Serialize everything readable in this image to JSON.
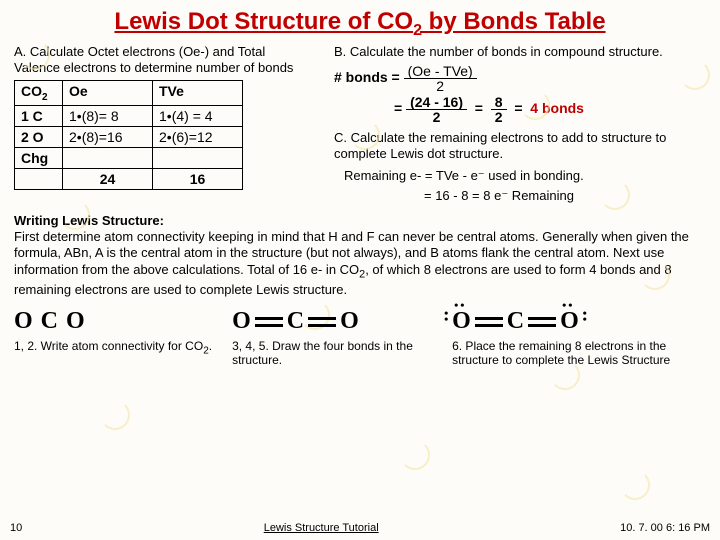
{
  "title_html": "Lewis Dot Structure of CO<sub>2</sub> by Bonds Table",
  "secA": "A. Calculate Octet electrons (Oe-) and Total Valence electrons to determine number of bonds",
  "table": {
    "r1": {
      "c1_html": "CO<sub>2</sub>",
      "c2": "Oe",
      "c3": "TVe"
    },
    "r2": {
      "c1": "1 C",
      "c2": "1•(8)= 8",
      "c3": "1•(4) = 4"
    },
    "r3": {
      "c1": "2 O",
      "c2": "2•(8)=16",
      "c3": "2•(6)=12"
    },
    "r4": {
      "c1": "Chg",
      "c2": "",
      "c3": ""
    },
    "r5": {
      "c1": "",
      "c2": "24",
      "c3": "16"
    }
  },
  "secB": "B. Calculate the number of bonds in compound structure.",
  "bonds_label": "# bonds  =",
  "frac1_top": "(Oe - TVe)",
  "frac1_bot": "2",
  "eq2_pre": "=",
  "frac2_top": "(24 - 16)",
  "frac2_bot": "2",
  "eq2_mid": "=",
  "frac3_top": "8",
  "frac3_bot": "2",
  "eq2_end": "=",
  "result_bonds": "4 bonds",
  "secC": "C.  Calculate the remaining electrons to add to structure to complete Lewis dot structure.",
  "remain_l1": "Remaining e-  = TVe  -  e⁻ used in bonding.",
  "remain_l2": "= 16 - 8  =  8 e⁻ Remaining",
  "writing_title": "Writing Lewis Structure:",
  "writing_body_html": "First determine atom connectivity keeping in mind that H and F can never be central atoms.  Generally when given the formula, ABn, A is the central atom in the structure (but not always), and B atoms flank the central atom.   Next use information from the above calculations.  Total of 16 e- in CO<sub>2</sub>, of which 8 electrons are used to form 4 bonds and 8 remaining electrons are used to complete Lewis structure.",
  "struct1_caption_html": "1, 2. Write atom connectivity for CO<sub>2</sub>.",
  "struct2_caption": "3, 4, 5. Draw the four bonds in the structure.",
  "struct3_caption": "6. Place the remaining 8 electrons in the structure to complete the Lewis Structure",
  "atoms": {
    "o": "O",
    "c": "C"
  },
  "footer": {
    "page": "10",
    "link": "Lewis Structure Tutorial",
    "stamp": "10. 7. 00 6: 16 PM"
  },
  "swirls": [
    {
      "t": 40,
      "l": 20
    },
    {
      "t": 60,
      "l": 680
    },
    {
      "t": 120,
      "l": 350
    },
    {
      "t": 200,
      "l": 60
    },
    {
      "t": 260,
      "l": 640
    },
    {
      "t": 400,
      "l": 100
    },
    {
      "t": 440,
      "l": 400
    },
    {
      "t": 470,
      "l": 620
    },
    {
      "t": 90,
      "l": 520
    },
    {
      "t": 300,
      "l": 300
    },
    {
      "t": 360,
      "l": 550
    },
    {
      "t": 180,
      "l": 600
    }
  ]
}
